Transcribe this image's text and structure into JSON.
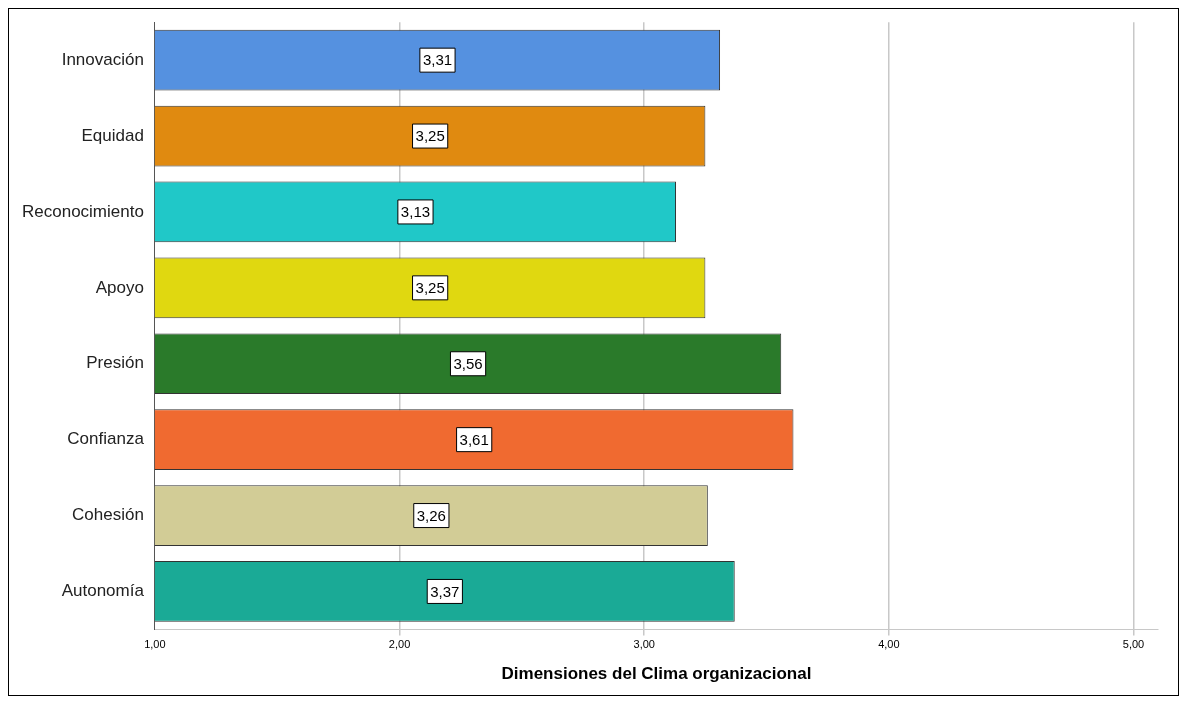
{
  "chart_data": {
    "type": "bar",
    "orientation": "horizontal",
    "xlabel": "Dimensiones del Clima organizacional",
    "categories": [
      "Innovación",
      "Equidad",
      "Reconocimiento",
      "Apoyo",
      "Presión",
      "Confianza",
      "Cohesión",
      "Autonomía"
    ],
    "values": [
      3.31,
      3.25,
      3.13,
      3.25,
      3.56,
      3.61,
      3.26,
      3.37
    ],
    "value_labels": [
      "3,31",
      "3,25",
      "3,13",
      "3,25",
      "3,56",
      "3,61",
      "3,26",
      "3,37"
    ],
    "colors": [
      "#5591e0",
      "#e08a10",
      "#20c8c8",
      "#e0d810",
      "#2a7a2a",
      "#f06a30",
      "#d2cc96",
      "#1aaa96"
    ],
    "xlim": [
      1,
      5.1
    ],
    "xticks": [
      {
        "value": 1,
        "label": "1,00"
      },
      {
        "value": 2,
        "label": "2,00"
      },
      {
        "value": 3,
        "label": "3,00"
      },
      {
        "value": 4,
        "label": "4,00"
      },
      {
        "value": 5,
        "label": "5,00"
      }
    ],
    "grid": "x",
    "legend": false
  }
}
